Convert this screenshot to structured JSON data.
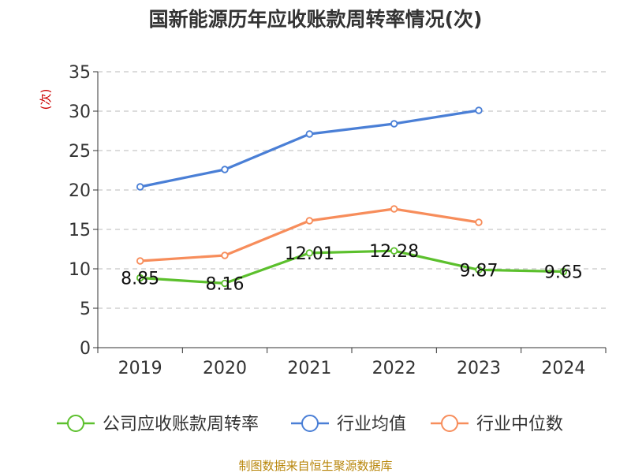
{
  "chart_data": {
    "type": "line",
    "title": "国新能源历年应收账款周转率情况(次)",
    "ylabel": "(次)",
    "xlabel": "",
    "categories": [
      "2019",
      "2020",
      "2021",
      "2022",
      "2023",
      "2024"
    ],
    "ylim": [
      0,
      35
    ],
    "yticks": [
      0,
      5,
      10,
      15,
      20,
      25,
      30,
      35
    ],
    "grid": true,
    "legend_position": "bottom",
    "series": [
      {
        "name": "公司应收账款周转率",
        "color": "#5cc02d",
        "values": [
          8.85,
          8.16,
          12.01,
          12.28,
          9.87,
          9.65
        ],
        "labels": [
          "8.85",
          "8.16",
          "12.01",
          "12.28",
          "9.87",
          "9.65"
        ]
      },
      {
        "name": "行业均值",
        "color": "#4a7fd6",
        "values": [
          20.4,
          22.6,
          27.1,
          28.4,
          30.1,
          null
        ]
      },
      {
        "name": "行业中位数",
        "color": "#f78d5b",
        "values": [
          11.0,
          11.7,
          16.1,
          17.6,
          15.9,
          null
        ]
      }
    ],
    "source": "制图数据来自恒生聚源数据库"
  }
}
